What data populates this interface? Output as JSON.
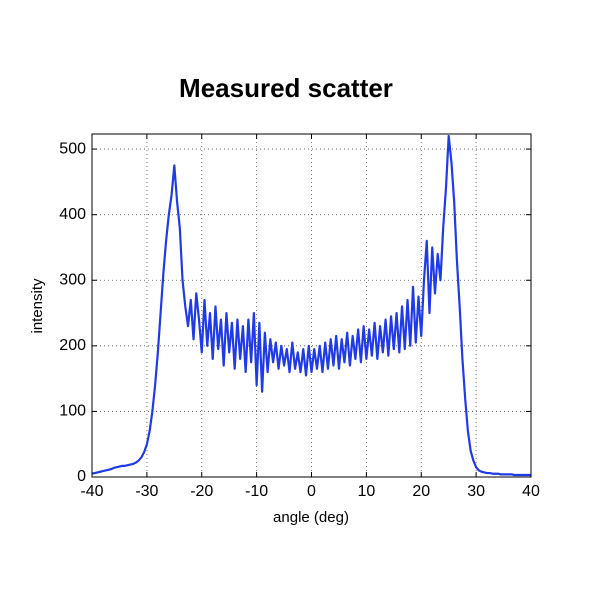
{
  "chart_data": {
    "type": "line",
    "title": "Measured scatter",
    "xlabel": "angle (deg)",
    "ylabel": "intensity",
    "x": [
      -40,
      -39.5,
      -39,
      -38.5,
      -38,
      -37.5,
      -37,
      -36.5,
      -36,
      -35.5,
      -35,
      -34.5,
      -34,
      -33.5,
      -33,
      -32.5,
      -32,
      -31.5,
      -31,
      -30.5,
      -30,
      -29.5,
      -29,
      -28.5,
      -28,
      -27.5,
      -27,
      -26.5,
      -26,
      -25.5,
      -25,
      -24.5,
      -24,
      -23.5,
      -23,
      -22.5,
      -22,
      -21.5,
      -21,
      -20.5,
      -20,
      -19.5,
      -19,
      -18.5,
      -18,
      -17.5,
      -17,
      -16.5,
      -16,
      -15.5,
      -15,
      -14.5,
      -14,
      -13.5,
      -13,
      -12.5,
      -12,
      -11.5,
      -11,
      -10.5,
      -10,
      -9.5,
      -9,
      -8.5,
      -8,
      -7.5,
      -7,
      -6.5,
      -6,
      -5.5,
      -5,
      -4.5,
      -4,
      -3.5,
      -3,
      -2.5,
      -2,
      -1.5,
      -1,
      -0.5,
      0,
      0.5,
      1,
      1.5,
      2,
      2.5,
      3,
      3.5,
      4,
      4.5,
      5,
      5.5,
      6,
      6.5,
      7,
      7.5,
      8,
      8.5,
      9,
      9.5,
      10,
      10.5,
      11,
      11.5,
      12,
      12.5,
      13,
      13.5,
      14,
      14.5,
      15,
      15.5,
      16,
      16.5,
      17,
      17.5,
      18,
      18.5,
      19,
      19.5,
      20,
      20.5,
      21,
      21.5,
      22,
      22.5,
      23,
      23.5,
      24,
      24.5,
      25,
      25.5,
      26,
      26.5,
      27,
      27.5,
      28,
      28.5,
      29,
      29.5,
      30,
      30.5,
      31,
      31.5,
      32,
      32.5,
      33,
      33.5,
      34,
      34.5,
      35,
      35.5,
      36,
      36.5,
      37,
      37.5,
      38,
      38.5,
      39,
      39.5,
      40
    ],
    "values": [
      5,
      6,
      7,
      8,
      9,
      10,
      11,
      12,
      14,
      15,
      16,
      17,
      17,
      18,
      19,
      20,
      22,
      25,
      30,
      38,
      50,
      70,
      100,
      140,
      190,
      250,
      310,
      360,
      400,
      430,
      475,
      420,
      380,
      300,
      260,
      230,
      270,
      210,
      280,
      240,
      190,
      270,
      200,
      250,
      180,
      260,
      195,
      240,
      170,
      250,
      190,
      235,
      165,
      240,
      180,
      230,
      160,
      240,
      175,
      250,
      140,
      235,
      130,
      220,
      160,
      210,
      175,
      205,
      165,
      200,
      170,
      195,
      160,
      205,
      165,
      190,
      160,
      195,
      155,
      200,
      160,
      195,
      165,
      200,
      160,
      205,
      165,
      210,
      170,
      215,
      165,
      210,
      175,
      220,
      170,
      215,
      180,
      225,
      175,
      230,
      180,
      225,
      185,
      235,
      180,
      230,
      190,
      240,
      185,
      245,
      195,
      250,
      190,
      260,
      195,
      270,
      200,
      290,
      205,
      275,
      215,
      300,
      360,
      250,
      350,
      280,
      340,
      300,
      380,
      440,
      520,
      480,
      420,
      330,
      260,
      180,
      120,
      70,
      40,
      25,
      15,
      10,
      8,
      7,
      6,
      6,
      5,
      5,
      5,
      4,
      4,
      4,
      4,
      4,
      3,
      3,
      3,
      3,
      3,
      3,
      3
    ],
    "color": "#1f3be8",
    "xlim": [
      -40,
      40
    ],
    "xticks": [
      -40,
      -30,
      -20,
      -10,
      0,
      10,
      20,
      30,
      40
    ],
    "ylim": [
      0,
      523
    ],
    "yticks": [
      0,
      100,
      200,
      300,
      400,
      500
    ],
    "grid": true
  }
}
